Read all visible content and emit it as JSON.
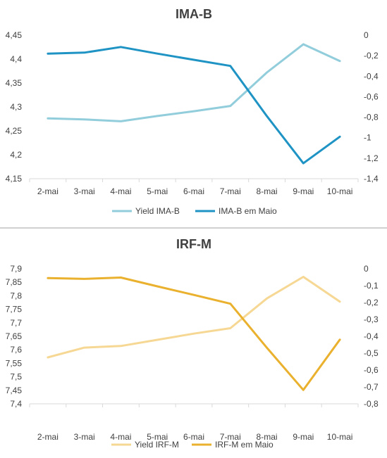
{
  "chart_data": [
    {
      "type": "line",
      "title": "IMA-B",
      "categories": [
        "2-mai",
        "3-mai",
        "4-mai",
        "5-mai",
        "6-mai",
        "7-mai",
        "8-mai",
        "9-mai",
        "10-mai"
      ],
      "series": [
        {
          "name": "Yield IMA-B",
          "axis": "left",
          "color": "#92cddc",
          "values": [
            4.276,
            4.274,
            4.27,
            4.281,
            4.291,
            4.302,
            4.372,
            4.431,
            4.396
          ]
        },
        {
          "name": "IMA-B em Maio",
          "axis": "right",
          "color": "#1f94c4",
          "values": [
            -0.18,
            -0.17,
            -0.115,
            -0.18,
            -0.24,
            -0.3,
            -0.79,
            -1.25,
            -0.99
          ]
        }
      ],
      "ylim_left": [
        4.15,
        4.45
      ],
      "ylim_right": [
        -1.4,
        0
      ],
      "yticks_left": [
        "4,15",
        "4,2",
        "4,25",
        "4,3",
        "4,35",
        "4,4",
        "4,45"
      ],
      "yticks_right": [
        "-1,4",
        "-1,2",
        "-1",
        "-0,8",
        "-0,6",
        "-0,4",
        "-0,2",
        "0"
      ],
      "grid": false,
      "legend": "bottom"
    },
    {
      "type": "line",
      "title": "IRF-M",
      "categories": [
        "2-mai",
        "3-mai",
        "4-mai",
        "5-mai",
        "6-mai",
        "7-mai",
        "8-mai",
        "9-mai",
        "10-mai"
      ],
      "series": [
        {
          "name": "Yield IRF-M",
          "axis": "left",
          "color": "#f6d894",
          "values": [
            7.572,
            7.608,
            7.614,
            7.637,
            7.66,
            7.68,
            7.79,
            7.87,
            7.778
          ]
        },
        {
          "name": "IRF-M em Maio",
          "axis": "right",
          "color": "#eab12e",
          "values": [
            -0.055,
            -0.06,
            -0.052,
            -0.104,
            -0.155,
            -0.207,
            -0.468,
            -0.718,
            -0.42
          ]
        }
      ],
      "ylim_left": [
        7.4,
        7.9
      ],
      "ylim_right": [
        -0.8,
        0
      ],
      "yticks_left": [
        "7,4",
        "7,45",
        "7,5",
        "7,55",
        "7,6",
        "7,65",
        "7,7",
        "7,75",
        "7,8",
        "7,85",
        "7,9"
      ],
      "yticks_right": [
        "-0,8",
        "-0,7",
        "-0,6",
        "-0,5",
        "-0,4",
        "-0,3",
        "-0,2",
        "-0,1",
        "0"
      ],
      "grid": false,
      "legend": "bottom"
    }
  ]
}
